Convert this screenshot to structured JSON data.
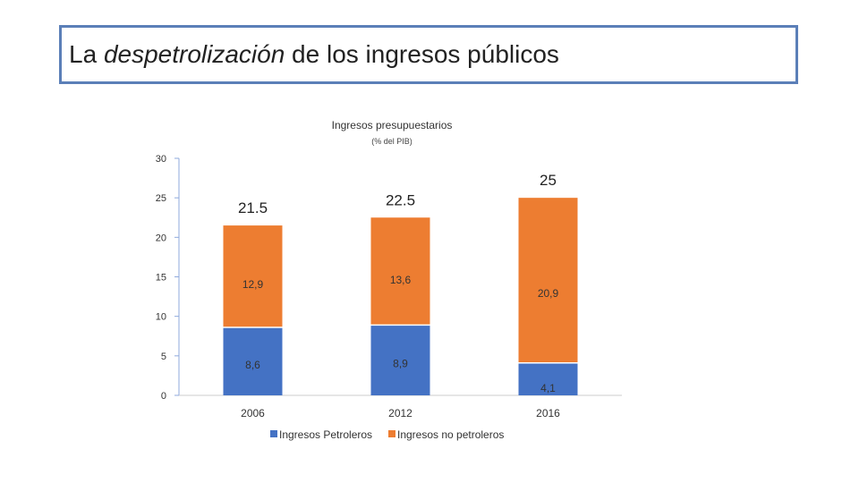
{
  "slide": {
    "title_prefix": "La ",
    "title_italic": "despetrolización",
    "title_suffix": " de los ingresos públicos"
  },
  "colors": {
    "petroleros": "#4472c4",
    "no_petroleros": "#ed7d31",
    "axis": "#8faadc"
  },
  "chart_data": {
    "type": "bar",
    "stacked": true,
    "title": "Ingresos presupuestarios",
    "subtitle": "(% del PIB)",
    "categories": [
      "2006",
      "2012",
      "2016"
    ],
    "series": [
      {
        "name": "Ingresos Petroleros",
        "values": [
          8.6,
          8.9,
          4.1
        ],
        "labels": [
          "8,6",
          "8,9",
          "4,1"
        ]
      },
      {
        "name": "Ingresos no petroleros",
        "values": [
          12.9,
          13.6,
          20.9
        ],
        "labels": [
          "12,9",
          "13,6",
          "20,9"
        ]
      }
    ],
    "totals": [
      "21.5",
      "22.5",
      "25"
    ],
    "ylim": [
      0,
      30
    ],
    "yticks": [
      0,
      5,
      10,
      15,
      20,
      25,
      30
    ],
    "legend": "bottom"
  }
}
